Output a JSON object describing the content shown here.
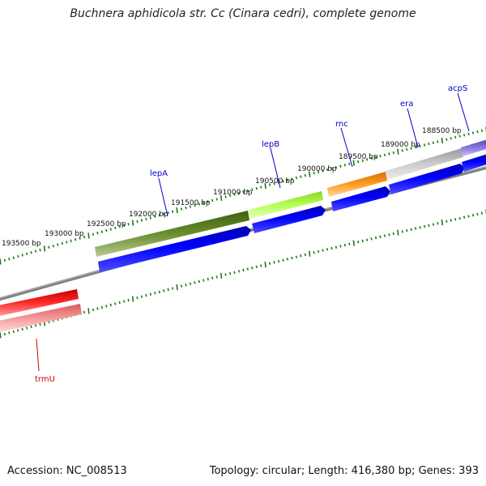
{
  "title": "Buchnera aphidicola str. Cc (Cinara cedri), complete genome",
  "footer": {
    "accession": "Accession: NC_008513",
    "summary": "Topology: circular; Length: 416,380 bp; Genes: 393"
  },
  "ticks": [
    "193500 bp",
    "193000 bp",
    "192500 bp",
    "192000 bp",
    "191500 bp",
    "191000 bp",
    "190500 bp",
    "190000 bp",
    "189500 bp",
    "189000 bp",
    "188500 bp"
  ],
  "genes": [
    {
      "name": "lepA",
      "strand": "reverse",
      "color": "#557a1d"
    },
    {
      "name": "lepB",
      "strand": "reverse",
      "color": "#a6f03a"
    },
    {
      "name": "rnc",
      "strand": "reverse",
      "color": "#f08c0c"
    },
    {
      "name": "era",
      "strand": "reverse",
      "color": "#b5b5b5"
    },
    {
      "name": "acpS",
      "strand": "reverse",
      "color": "#7b6ad3"
    },
    {
      "name": "trmU",
      "strand": "forward",
      "color": "#e61b1b"
    }
  ],
  "colors": {
    "cds": "#0000ee",
    "backbone": "#808080",
    "ticks": "#1a7a1a",
    "label_blue": "#0000cc",
    "label_red": "#cc0000"
  }
}
